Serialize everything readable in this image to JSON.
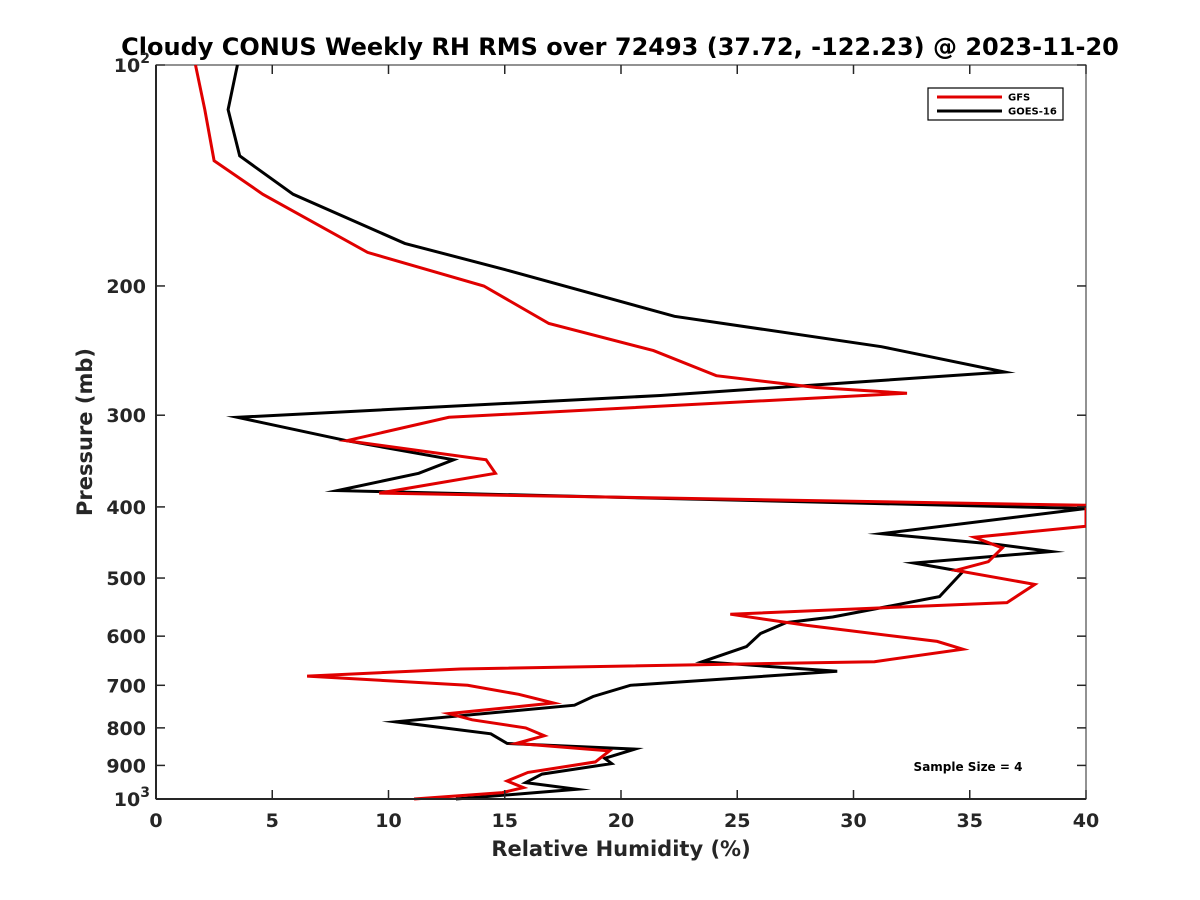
{
  "chart_data": {
    "type": "line",
    "title": "Cloudy CONUS Weekly RH RMS over 72493 (37.72, -122.23) @ 2023-11-20",
    "xlabel": "Relative Humidity (%)",
    "ylabel": "Pressure (mb)",
    "xlim": [
      0,
      40
    ],
    "ylim": [
      100,
      1000
    ],
    "y_scale": "log",
    "y_reversed": true,
    "grid": false,
    "legend_position": "top-right",
    "x_ticks": [
      0,
      5,
      10,
      15,
      20,
      25,
      30,
      35,
      40
    ],
    "x_tick_labels": [
      "0",
      "5",
      "10",
      "15",
      "20",
      "25",
      "30",
      "35",
      "40"
    ],
    "y_ticks": [
      100,
      200,
      300,
      400,
      500,
      600,
      700,
      800,
      900,
      1000
    ],
    "y_tick_labels": [
      {
        "base": "10",
        "exp": "2"
      },
      {
        "base": "200",
        "exp": ""
      },
      {
        "base": "300",
        "exp": ""
      },
      {
        "base": "400",
        "exp": ""
      },
      {
        "base": "500",
        "exp": ""
      },
      {
        "base": "600",
        "exp": ""
      },
      {
        "base": "700",
        "exp": ""
      },
      {
        "base": "800",
        "exp": ""
      },
      {
        "base": "900",
        "exp": ""
      },
      {
        "base": "10",
        "exp": "3"
      }
    ],
    "annotation": "Sample Size = 4",
    "series": [
      {
        "name": "GFS",
        "color": "#e00000",
        "points": [
          [
            1.7,
            100
          ],
          [
            2.1,
            115
          ],
          [
            2.5,
            135
          ],
          [
            4.6,
            150
          ],
          [
            9.1,
            180
          ],
          [
            14.1,
            200
          ],
          [
            16.9,
            225
          ],
          [
            21.4,
            245
          ],
          [
            24.1,
            265
          ],
          [
            28.4,
            275
          ],
          [
            32.3,
            280
          ],
          [
            12.6,
            302
          ],
          [
            8.2,
            325
          ],
          [
            14.2,
            345
          ],
          [
            14.6,
            360
          ],
          [
            9.6,
            383
          ],
          [
            40.0,
            398
          ],
          [
            40.0,
            425
          ],
          [
            35.2,
            440
          ],
          [
            36.4,
            455
          ],
          [
            35.8,
            475
          ],
          [
            34.4,
            488
          ],
          [
            37.8,
            510
          ],
          [
            36.6,
            540
          ],
          [
            24.7,
            560
          ],
          [
            28.0,
            580
          ],
          [
            33.6,
            610
          ],
          [
            34.7,
            625
          ],
          [
            30.9,
            650
          ],
          [
            13.1,
            665
          ],
          [
            6.5,
            680
          ],
          [
            13.4,
            700
          ],
          [
            15.6,
            720
          ],
          [
            17.1,
            740
          ],
          [
            12.6,
            765
          ],
          [
            13.6,
            780
          ],
          [
            15.9,
            800
          ],
          [
            16.7,
            820
          ],
          [
            15.5,
            840
          ],
          [
            19.5,
            860
          ],
          [
            18.9,
            890
          ],
          [
            16.0,
            920
          ],
          [
            15.1,
            945
          ],
          [
            15.8,
            965
          ],
          [
            14.9,
            980
          ],
          [
            11.1,
            1000
          ]
        ]
      },
      {
        "name": "GOES-16",
        "color": "#000000",
        "points": [
          [
            3.5,
            100
          ],
          [
            3.1,
            115
          ],
          [
            3.6,
            133
          ],
          [
            5.9,
            150
          ],
          [
            10.7,
            175
          ],
          [
            15.0,
            190
          ],
          [
            22.3,
            220
          ],
          [
            31.2,
            242
          ],
          [
            36.5,
            262
          ],
          [
            21.7,
            282
          ],
          [
            3.5,
            302
          ],
          [
            8.2,
            325
          ],
          [
            12.8,
            345
          ],
          [
            11.3,
            360
          ],
          [
            7.8,
            380
          ],
          [
            40.0,
            402
          ],
          [
            31.2,
            435
          ],
          [
            36.2,
            450
          ],
          [
            38.5,
            460
          ],
          [
            32.6,
            477
          ],
          [
            34.7,
            490
          ],
          [
            33.7,
            530
          ],
          [
            29.1,
            565
          ],
          [
            27.1,
            575
          ],
          [
            26.0,
            595
          ],
          [
            25.4,
            620
          ],
          [
            23.5,
            650
          ],
          [
            29.3,
            670
          ],
          [
            20.4,
            700
          ],
          [
            18.8,
            725
          ],
          [
            18.0,
            745
          ],
          [
            10.3,
            785
          ],
          [
            14.4,
            815
          ],
          [
            15.1,
            840
          ],
          [
            20.6,
            855
          ],
          [
            19.3,
            880
          ],
          [
            19.6,
            895
          ],
          [
            16.6,
            925
          ],
          [
            15.9,
            950
          ],
          [
            18.1,
            970
          ],
          [
            12.9,
            1000
          ]
        ]
      }
    ]
  }
}
